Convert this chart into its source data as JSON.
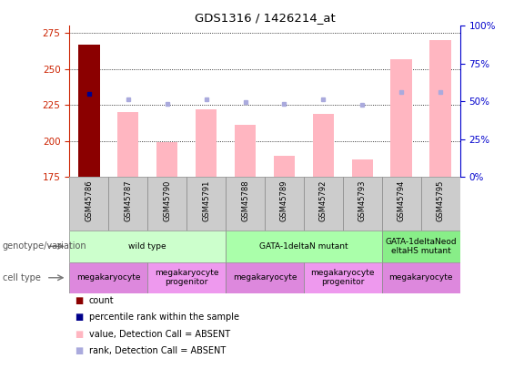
{
  "title": "GDS1316 / 1426214_at",
  "samples": [
    "GSM45786",
    "GSM45787",
    "GSM45790",
    "GSM45791",
    "GSM45788",
    "GSM45789",
    "GSM45792",
    "GSM45793",
    "GSM45794",
    "GSM45795"
  ],
  "ylim": [
    175,
    280
  ],
  "y_ticks": [
    175,
    200,
    225,
    250,
    275
  ],
  "y2lim": [
    0,
    100
  ],
  "y2_ticks": [
    0,
    25,
    50,
    75,
    100
  ],
  "bar_values": [
    267,
    220,
    199,
    222,
    211,
    190,
    219,
    187,
    257,
    270
  ],
  "bar_color_absent": "#FFB6C1",
  "bar_color_count": "#8B0000",
  "rank_squares": [
    {
      "sample_idx": 0,
      "value": 233,
      "color": "#00008B",
      "absent": false
    },
    {
      "sample_idx": 1,
      "value": 229,
      "color": "#AAAADD",
      "absent": true
    },
    {
      "sample_idx": 2,
      "value": 226,
      "color": "#AAAADD",
      "absent": true
    },
    {
      "sample_idx": 3,
      "value": 229,
      "color": "#AAAADD",
      "absent": true
    },
    {
      "sample_idx": 4,
      "value": 227,
      "color": "#AAAADD",
      "absent": true
    },
    {
      "sample_idx": 5,
      "value": 226,
      "color": "#AAAADD",
      "absent": true
    },
    {
      "sample_idx": 6,
      "value": 229,
      "color": "#AAAADD",
      "absent": true
    },
    {
      "sample_idx": 7,
      "value": 225,
      "color": "#AAAADD",
      "absent": true
    },
    {
      "sample_idx": 8,
      "value": 234,
      "color": "#AAAADD",
      "absent": true
    },
    {
      "sample_idx": 9,
      "value": 234,
      "color": "#AAAADD",
      "absent": true
    }
  ],
  "genotype_groups": [
    {
      "label": "wild type",
      "start": 0,
      "end": 3,
      "color": "#CCFFCC"
    },
    {
      "label": "GATA-1deltaN mutant",
      "start": 4,
      "end": 7,
      "color": "#AAFFAA"
    },
    {
      "label": "GATA-1deltaNeod\neltaHS mutant",
      "start": 8,
      "end": 9,
      "color": "#88EE88"
    }
  ],
  "cell_type_groups": [
    {
      "label": "megakaryocyte",
      "start": 0,
      "end": 1,
      "color": "#DD88DD"
    },
    {
      "label": "megakaryocyte\nprogenitor",
      "start": 2,
      "end": 3,
      "color": "#EE99EE"
    },
    {
      "label": "megakaryocyte",
      "start": 4,
      "end": 5,
      "color": "#DD88DD"
    },
    {
      "label": "megakaryocyte\nprogenitor",
      "start": 6,
      "end": 7,
      "color": "#EE99EE"
    },
    {
      "label": "megakaryocyte",
      "start": 8,
      "end": 9,
      "color": "#DD88DD"
    }
  ],
  "left_label_genotype": "genotype/variation",
  "left_label_cell": "cell type",
  "legend_items": [
    {
      "label": "count",
      "color": "#8B0000"
    },
    {
      "label": "percentile rank within the sample",
      "color": "#00008B"
    },
    {
      "label": "value, Detection Call = ABSENT",
      "color": "#FFB6C1"
    },
    {
      "label": "rank, Detection Call = ABSENT",
      "color": "#AAAADD"
    }
  ],
  "left_axis_color": "#CC2200",
  "right_axis_color": "#0000CC",
  "sample_bg_color": "#CCCCCC",
  "sample_sep_color": "#888888"
}
